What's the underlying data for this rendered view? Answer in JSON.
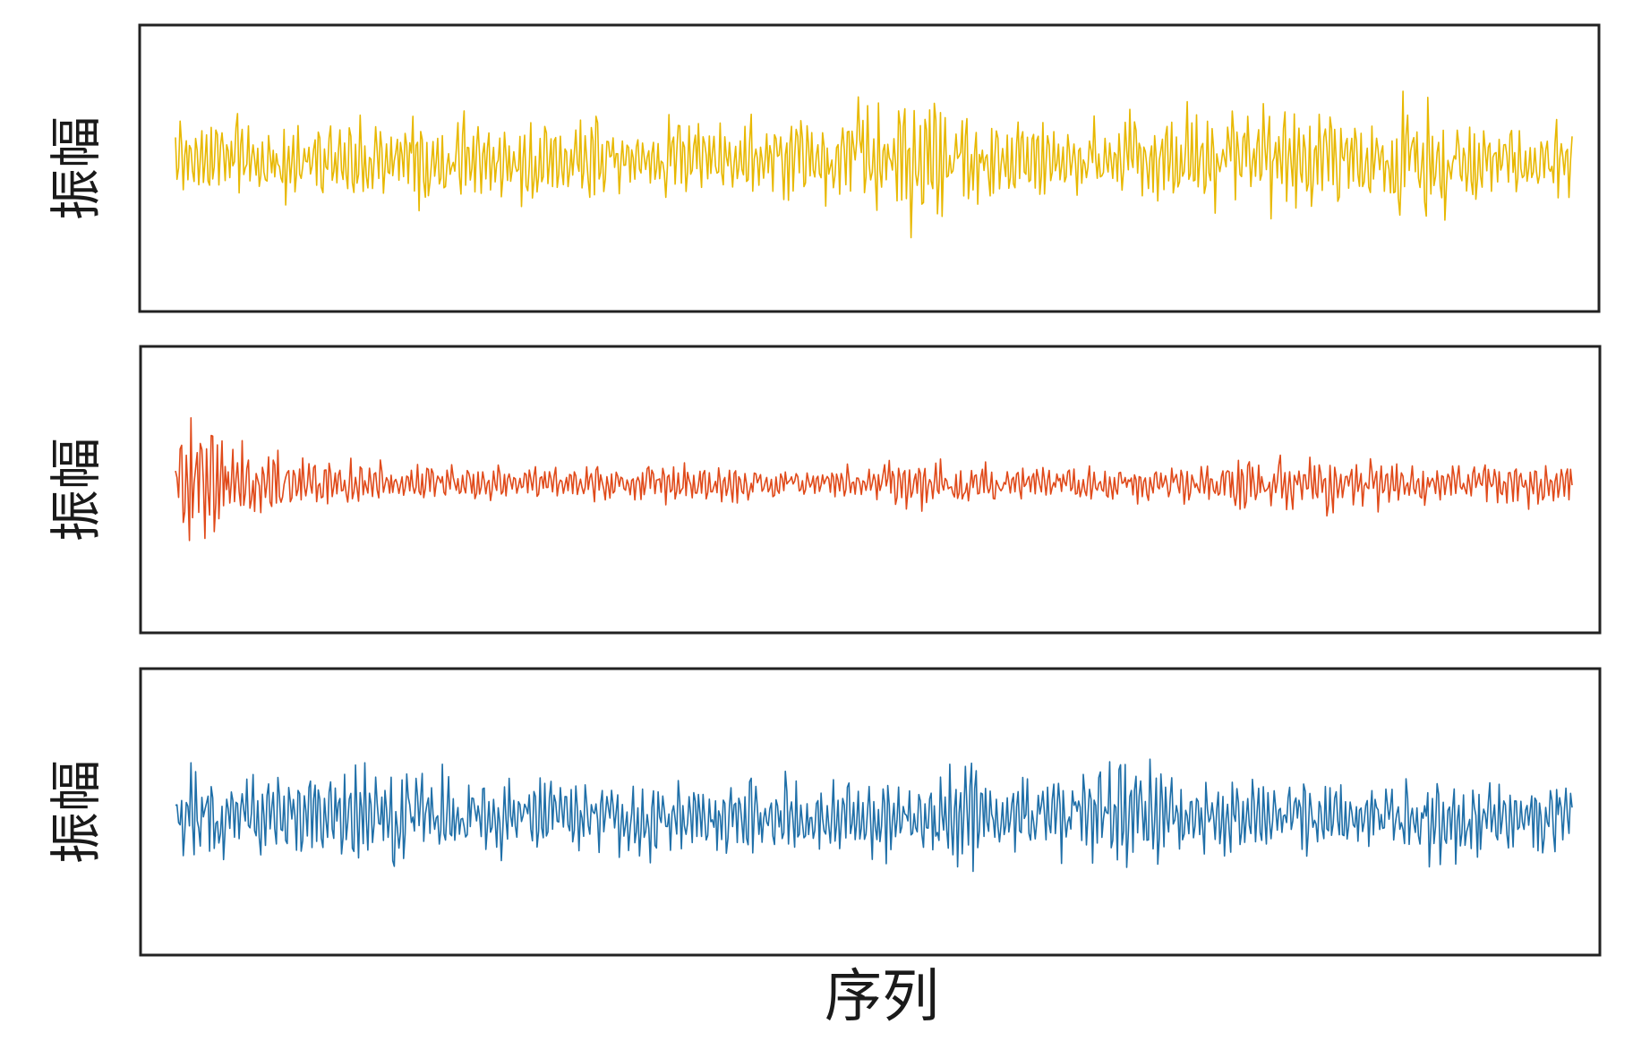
{
  "chart_data": [
    {
      "type": "line",
      "ylabel": "振幅",
      "xlabel": "",
      "color": "#e8b800",
      "x_range": [
        0,
        500
      ],
      "y_range": [
        -1,
        1
      ],
      "envelope": [
        [
          0,
          0.45
        ],
        [
          20,
          0.55
        ],
        [
          40,
          0.5
        ],
        [
          60,
          0.6
        ],
        [
          80,
          0.45
        ],
        [
          100,
          0.5
        ],
        [
          120,
          0.55
        ],
        [
          140,
          0.45
        ],
        [
          160,
          0.5
        ],
        [
          180,
          0.48
        ],
        [
          200,
          0.5
        ],
        [
          220,
          0.5
        ],
        [
          240,
          0.55
        ],
        [
          250,
          0.7
        ],
        [
          260,
          0.85
        ],
        [
          270,
          0.9
        ],
        [
          280,
          0.6
        ],
        [
          300,
          0.45
        ],
        [
          320,
          0.45
        ],
        [
          340,
          0.5
        ],
        [
          360,
          0.55
        ],
        [
          380,
          0.6
        ],
        [
          400,
          0.62
        ],
        [
          420,
          0.55
        ],
        [
          440,
          0.72
        ],
        [
          460,
          0.5
        ],
        [
          480,
          0.45
        ],
        [
          500,
          0.5
        ]
      ]
    },
    {
      "type": "line",
      "ylabel": "振幅",
      "xlabel": "",
      "color": "#e04a1a",
      "x_range": [
        0,
        500
      ],
      "y_range": [
        -1,
        1
      ],
      "envelope": [
        [
          0,
          0.55
        ],
        [
          10,
          0.7
        ],
        [
          20,
          0.55
        ],
        [
          40,
          0.35
        ],
        [
          60,
          0.3
        ],
        [
          80,
          0.25
        ],
        [
          100,
          0.22
        ],
        [
          120,
          0.22
        ],
        [
          140,
          0.2
        ],
        [
          160,
          0.22
        ],
        [
          180,
          0.2
        ],
        [
          200,
          0.2
        ],
        [
          220,
          0.18
        ],
        [
          240,
          0.2
        ],
        [
          260,
          0.25
        ],
        [
          280,
          0.28
        ],
        [
          300,
          0.2
        ],
        [
          320,
          0.22
        ],
        [
          340,
          0.2
        ],
        [
          360,
          0.2
        ],
        [
          380,
          0.3
        ],
        [
          400,
          0.32
        ],
        [
          420,
          0.3
        ],
        [
          440,
          0.28
        ],
        [
          460,
          0.25
        ],
        [
          480,
          0.25
        ],
        [
          500,
          0.22
        ]
      ]
    },
    {
      "type": "line",
      "ylabel": "振幅",
      "xlabel": "序列",
      "color": "#1f6fa8",
      "x_range": [
        0,
        500
      ],
      "y_range": [
        -1,
        1
      ],
      "envelope": [
        [
          0,
          0.55
        ],
        [
          10,
          0.7
        ],
        [
          20,
          0.5
        ],
        [
          40,
          0.5
        ],
        [
          60,
          0.55
        ],
        [
          80,
          0.6
        ],
        [
          100,
          0.45
        ],
        [
          120,
          0.45
        ],
        [
          140,
          0.4
        ],
        [
          160,
          0.45
        ],
        [
          180,
          0.45
        ],
        [
          200,
          0.5
        ],
        [
          220,
          0.45
        ],
        [
          240,
          0.45
        ],
        [
          260,
          0.55
        ],
        [
          280,
          0.55
        ],
        [
          300,
          0.45
        ],
        [
          320,
          0.5
        ],
        [
          340,
          0.6
        ],
        [
          360,
          0.5
        ],
        [
          380,
          0.45
        ],
        [
          400,
          0.45
        ],
        [
          420,
          0.4
        ],
        [
          440,
          0.45
        ],
        [
          460,
          0.45
        ],
        [
          480,
          0.4
        ],
        [
          500,
          0.4
        ]
      ]
    }
  ]
}
